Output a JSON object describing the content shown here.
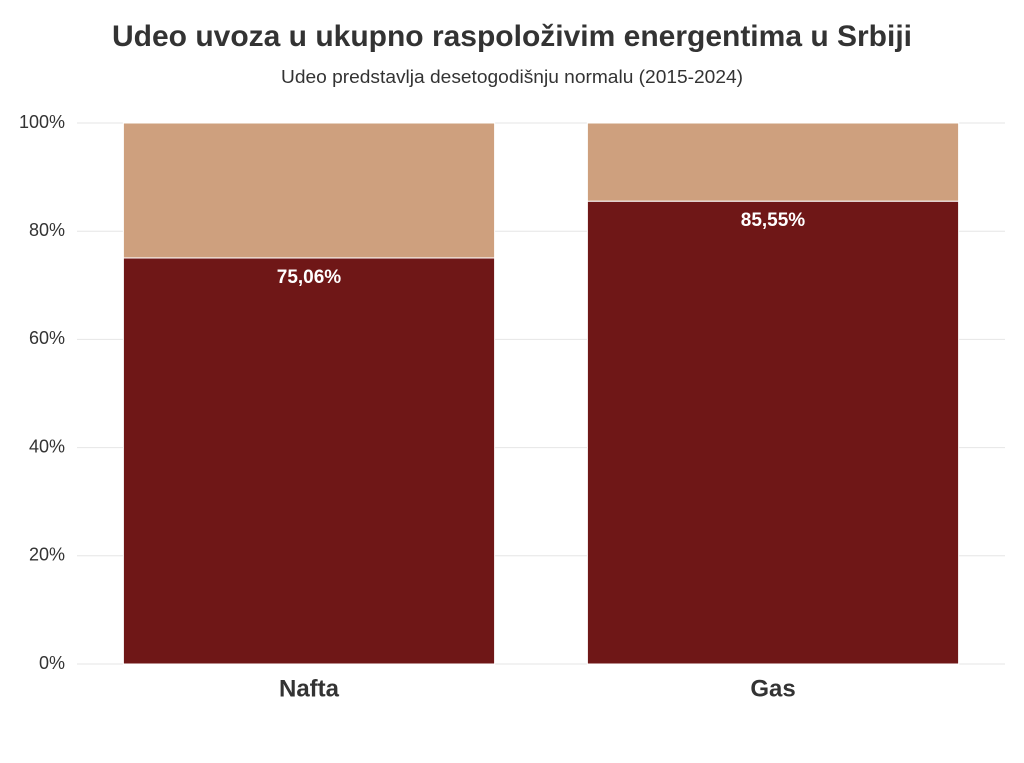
{
  "chart_data": {
    "type": "stacked-bar",
    "title": "Udeo uvoza u ukupno raspoloživim energentima u Srbiji",
    "subtitle": "Udeo predstavlja desetogodišnju normalu (2015-2024)",
    "categories": [
      "Nafta",
      "Gas"
    ],
    "series": [
      {
        "color": "#6f1717",
        "values": [
          75.06,
          85.55
        ],
        "value_labels": [
          "75,06%",
          "85,55%"
        ]
      },
      {
        "color": "#cea07e",
        "values": [
          24.94,
          14.45
        ]
      }
    ],
    "ylim": [
      0,
      100
    ],
    "yticks": [
      {
        "value": 0,
        "label": "0%"
      },
      {
        "value": 20,
        "label": "20%"
      },
      {
        "value": 40,
        "label": "40%"
      },
      {
        "value": 60,
        "label": "60%"
      },
      {
        "value": 80,
        "label": "80%"
      },
      {
        "value": 100,
        "label": "100%"
      }
    ],
    "grid": true
  }
}
